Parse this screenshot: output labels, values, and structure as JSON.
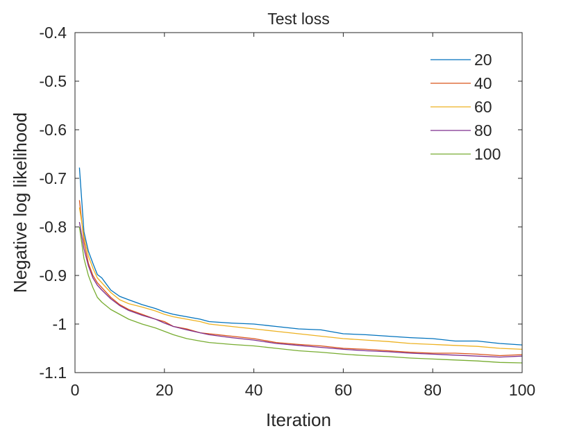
{
  "chart_data": {
    "type": "line",
    "title": "Test loss",
    "xlabel": "Iteration",
    "ylabel": "Negative log likelihood",
    "xlim": [
      0,
      100
    ],
    "ylim": [
      -1.1,
      -0.4
    ],
    "xticks": [
      0,
      20,
      40,
      60,
      80,
      100
    ],
    "xtick_labels": [
      "0",
      "20",
      "40",
      "60",
      "80",
      "100"
    ],
    "yticks": [
      -0.4,
      -0.5,
      -0.6,
      -0.7,
      -0.8,
      -0.9,
      -1.0,
      -1.1
    ],
    "ytick_labels": [
      "-0.4",
      "-0.5",
      "-0.6",
      "-0.7",
      "-0.8",
      "-0.9",
      "-1",
      "-1.1"
    ],
    "grid": false,
    "legend_position": "top-right",
    "x": [
      1,
      2,
      3,
      4,
      5,
      6,
      8,
      10,
      12,
      15,
      18,
      20,
      22,
      25,
      28,
      30,
      35,
      40,
      45,
      50,
      55,
      60,
      65,
      70,
      75,
      80,
      85,
      90,
      95,
      100
    ],
    "series": [
      {
        "name": "20",
        "color": "#0072BD",
        "values": [
          -0.678,
          -0.81,
          -0.85,
          -0.875,
          -0.898,
          -0.905,
          -0.93,
          -0.943,
          -0.95,
          -0.96,
          -0.968,
          -0.975,
          -0.98,
          -0.985,
          -0.99,
          -0.995,
          -0.998,
          -1.0,
          -1.005,
          -1.01,
          -1.012,
          -1.02,
          -1.022,
          -1.025,
          -1.028,
          -1.03,
          -1.035,
          -1.035,
          -1.04,
          -1.043
        ]
      },
      {
        "name": "40",
        "color": "#D95319",
        "values": [
          -0.745,
          -0.83,
          -0.875,
          -0.9,
          -0.915,
          -0.925,
          -0.945,
          -0.96,
          -0.97,
          -0.98,
          -0.99,
          -0.995,
          -1.005,
          -1.01,
          -1.018,
          -1.02,
          -1.025,
          -1.03,
          -1.038,
          -1.042,
          -1.045,
          -1.05,
          -1.052,
          -1.055,
          -1.058,
          -1.06,
          -1.06,
          -1.062,
          -1.065,
          -1.063
        ]
      },
      {
        "name": "60",
        "color": "#EDB120",
        "values": [
          -0.76,
          -0.82,
          -0.86,
          -0.885,
          -0.905,
          -0.915,
          -0.935,
          -0.95,
          -0.958,
          -0.965,
          -0.973,
          -0.98,
          -0.985,
          -0.99,
          -0.995,
          -1.0,
          -1.005,
          -1.01,
          -1.015,
          -1.02,
          -1.025,
          -1.03,
          -1.033,
          -1.036,
          -1.04,
          -1.042,
          -1.044,
          -1.046,
          -1.05,
          -1.052
        ]
      },
      {
        "name": "80",
        "color": "#7E2F8E",
        "values": [
          -0.79,
          -0.845,
          -0.88,
          -0.905,
          -0.92,
          -0.93,
          -0.948,
          -0.962,
          -0.972,
          -0.982,
          -0.99,
          -0.998,
          -1.005,
          -1.012,
          -1.018,
          -1.022,
          -1.028,
          -1.033,
          -1.04,
          -1.044,
          -1.048,
          -1.052,
          -1.055,
          -1.057,
          -1.06,
          -1.062,
          -1.064,
          -1.066,
          -1.068,
          -1.066
        ]
      },
      {
        "name": "100",
        "color": "#77AC30",
        "values": [
          -0.8,
          -0.865,
          -0.9,
          -0.925,
          -0.945,
          -0.955,
          -0.97,
          -0.98,
          -0.99,
          -1.0,
          -1.008,
          -1.015,
          -1.022,
          -1.03,
          -1.035,
          -1.038,
          -1.042,
          -1.045,
          -1.05,
          -1.055,
          -1.058,
          -1.062,
          -1.065,
          -1.067,
          -1.07,
          -1.072,
          -1.074,
          -1.076,
          -1.079,
          -1.08
        ]
      }
    ]
  }
}
